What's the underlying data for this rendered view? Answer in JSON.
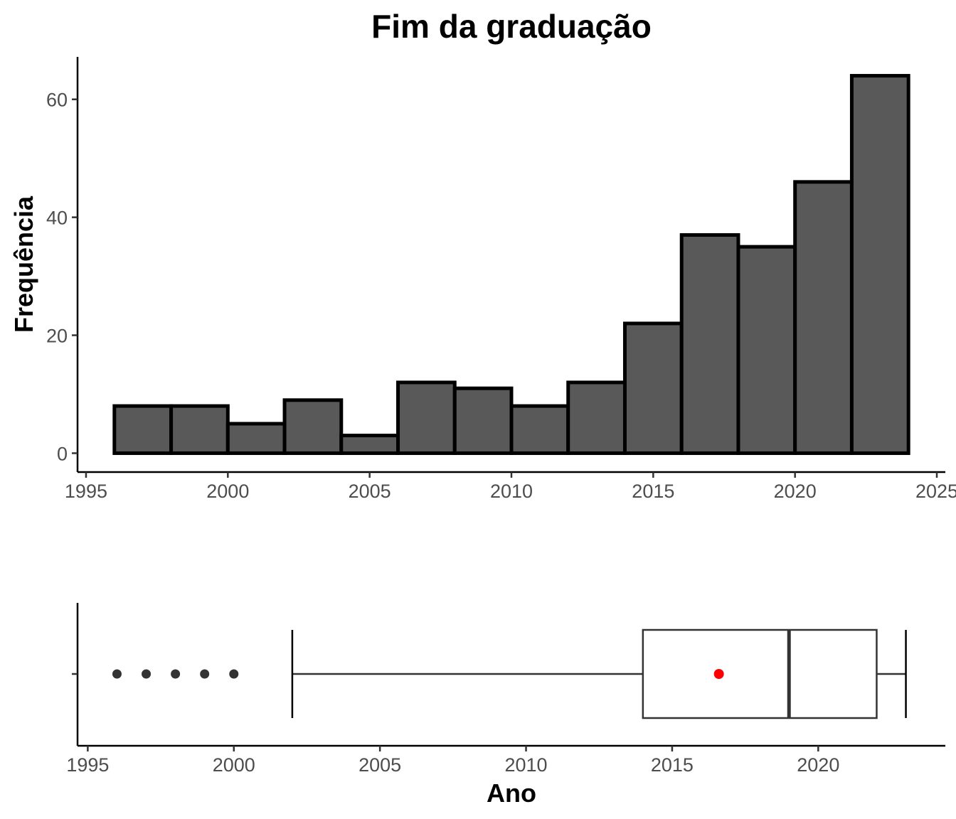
{
  "chart_data": [
    {
      "type": "bar",
      "subtype": "histogram",
      "title": "Fim da graduação",
      "xlabel": "",
      "ylabel": "Frequência",
      "bins": [
        {
          "start": 1996,
          "end": 1998,
          "count": 8
        },
        {
          "start": 1998,
          "end": 2000,
          "count": 8
        },
        {
          "start": 2000,
          "end": 2002,
          "count": 5
        },
        {
          "start": 2002,
          "end": 2004,
          "count": 9
        },
        {
          "start": 2004,
          "end": 2006,
          "count": 3
        },
        {
          "start": 2006,
          "end": 2008,
          "count": 12
        },
        {
          "start": 2008,
          "end": 2010,
          "count": 11
        },
        {
          "start": 2010,
          "end": 2012,
          "count": 8
        },
        {
          "start": 2012,
          "end": 2014,
          "count": 12
        },
        {
          "start": 2014,
          "end": 2016,
          "count": 22
        },
        {
          "start": 2016,
          "end": 2018,
          "count": 37
        },
        {
          "start": 2018,
          "end": 2020,
          "count": 35
        },
        {
          "start": 2020,
          "end": 2022,
          "count": 46
        },
        {
          "start": 2022,
          "end": 2024,
          "count": 64
        }
      ],
      "xlim": [
        1994.7,
        2025.3
      ],
      "ylim": [
        -3.2,
        67.2
      ],
      "xticks": [
        1995,
        2000,
        2005,
        2010,
        2015,
        2020,
        2025
      ],
      "yticks": [
        0,
        20,
        40,
        60
      ],
      "bar_fill": "#595959",
      "bar_stroke": "#000000",
      "grid": false
    },
    {
      "type": "boxplot",
      "orientation": "horizontal",
      "xlabel": "Ano",
      "ylabel": "",
      "whisker_low": 2002,
      "q1": 2014,
      "median": 2019,
      "q3": 2022,
      "whisker_high": 2023,
      "mean": 2016.6,
      "outliers": [
        1996,
        1997,
        1998,
        1999,
        2000
      ],
      "xlim": [
        1994.65,
        2024.35
      ],
      "xticks": [
        1995,
        2000,
        2005,
        2010,
        2015,
        2020
      ],
      "box_stroke": "#333333",
      "mean_color": "#ff0000",
      "outlier_color": "#333333",
      "grid": false
    }
  ]
}
